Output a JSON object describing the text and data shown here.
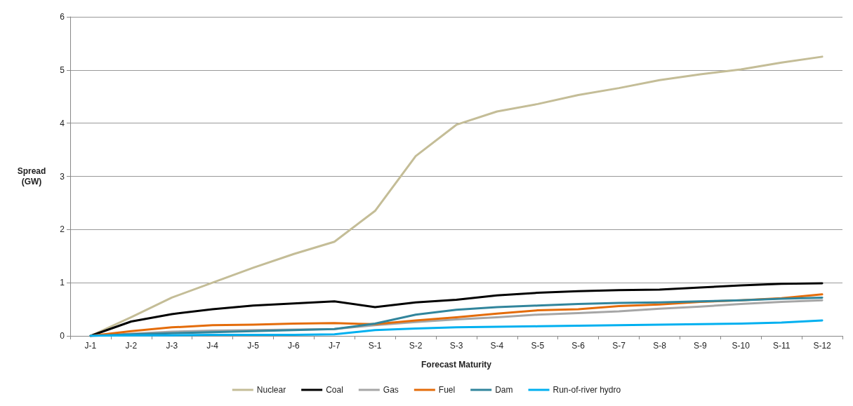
{
  "chart_data": {
    "type": "line",
    "xlabel": "Forecast Maturity",
    "ylabel": "Spread\n(GW)",
    "categories": [
      "J-1",
      "J-2",
      "J-3",
      "J-4",
      "J-5",
      "J-6",
      "J-7",
      "S-1",
      "S-2",
      "S-3",
      "S-4",
      "S-5",
      "S-6",
      "S-7",
      "S-8",
      "S-9",
      "S-10",
      "S-11",
      "S-12"
    ],
    "series": [
      {
        "name": "Nuclear",
        "color": "#c4bd97",
        "values": [
          0,
          0.35,
          0.72,
          1.0,
          1.28,
          1.54,
          1.77,
          2.35,
          3.38,
          3.97,
          4.22,
          4.36,
          4.53,
          4.66,
          4.81,
          4.92,
          5.01,
          5.14,
          5.25
        ]
      },
      {
        "name": "Coal",
        "color": "#000000",
        "values": [
          0,
          0.27,
          0.41,
          0.5,
          0.57,
          0.61,
          0.65,
          0.54,
          0.63,
          0.68,
          0.76,
          0.81,
          0.84,
          0.86,
          0.87,
          0.91,
          0.95,
          0.98,
          0.99
        ]
      },
      {
        "name": "Gas",
        "color": "#a6a6a6",
        "values": [
          0,
          0.04,
          0.08,
          0.1,
          0.11,
          0.12,
          0.13,
          0.2,
          0.26,
          0.31,
          0.35,
          0.4,
          0.43,
          0.46,
          0.51,
          0.55,
          0.6,
          0.64,
          0.67
        ]
      },
      {
        "name": "Fuel",
        "color": "#e46c0a",
        "values": [
          0,
          0.09,
          0.16,
          0.2,
          0.21,
          0.23,
          0.24,
          0.22,
          0.29,
          0.35,
          0.42,
          0.48,
          0.5,
          0.56,
          0.59,
          0.64,
          0.67,
          0.71,
          0.78
        ]
      },
      {
        "name": "Dam",
        "color": "#31859c",
        "values": [
          0,
          0.03,
          0.05,
          0.07,
          0.09,
          0.11,
          0.13,
          0.23,
          0.4,
          0.49,
          0.54,
          0.57,
          0.6,
          0.62,
          0.63,
          0.65,
          0.67,
          0.7,
          0.72
        ]
      },
      {
        "name": "Run-of-river hydro",
        "color": "#00b0f0",
        "values": [
          0,
          0.01,
          0.01,
          0.02,
          0.02,
          0.02,
          0.03,
          0.11,
          0.14,
          0.16,
          0.17,
          0.18,
          0.19,
          0.2,
          0.21,
          0.22,
          0.23,
          0.25,
          0.29
        ]
      }
    ],
    "ylim": [
      0,
      6
    ],
    "yticks": [
      0,
      1,
      2,
      3,
      4,
      5,
      6
    ],
    "grid": "y",
    "legend": "bottom",
    "marker": "none",
    "line_style": "solid"
  }
}
